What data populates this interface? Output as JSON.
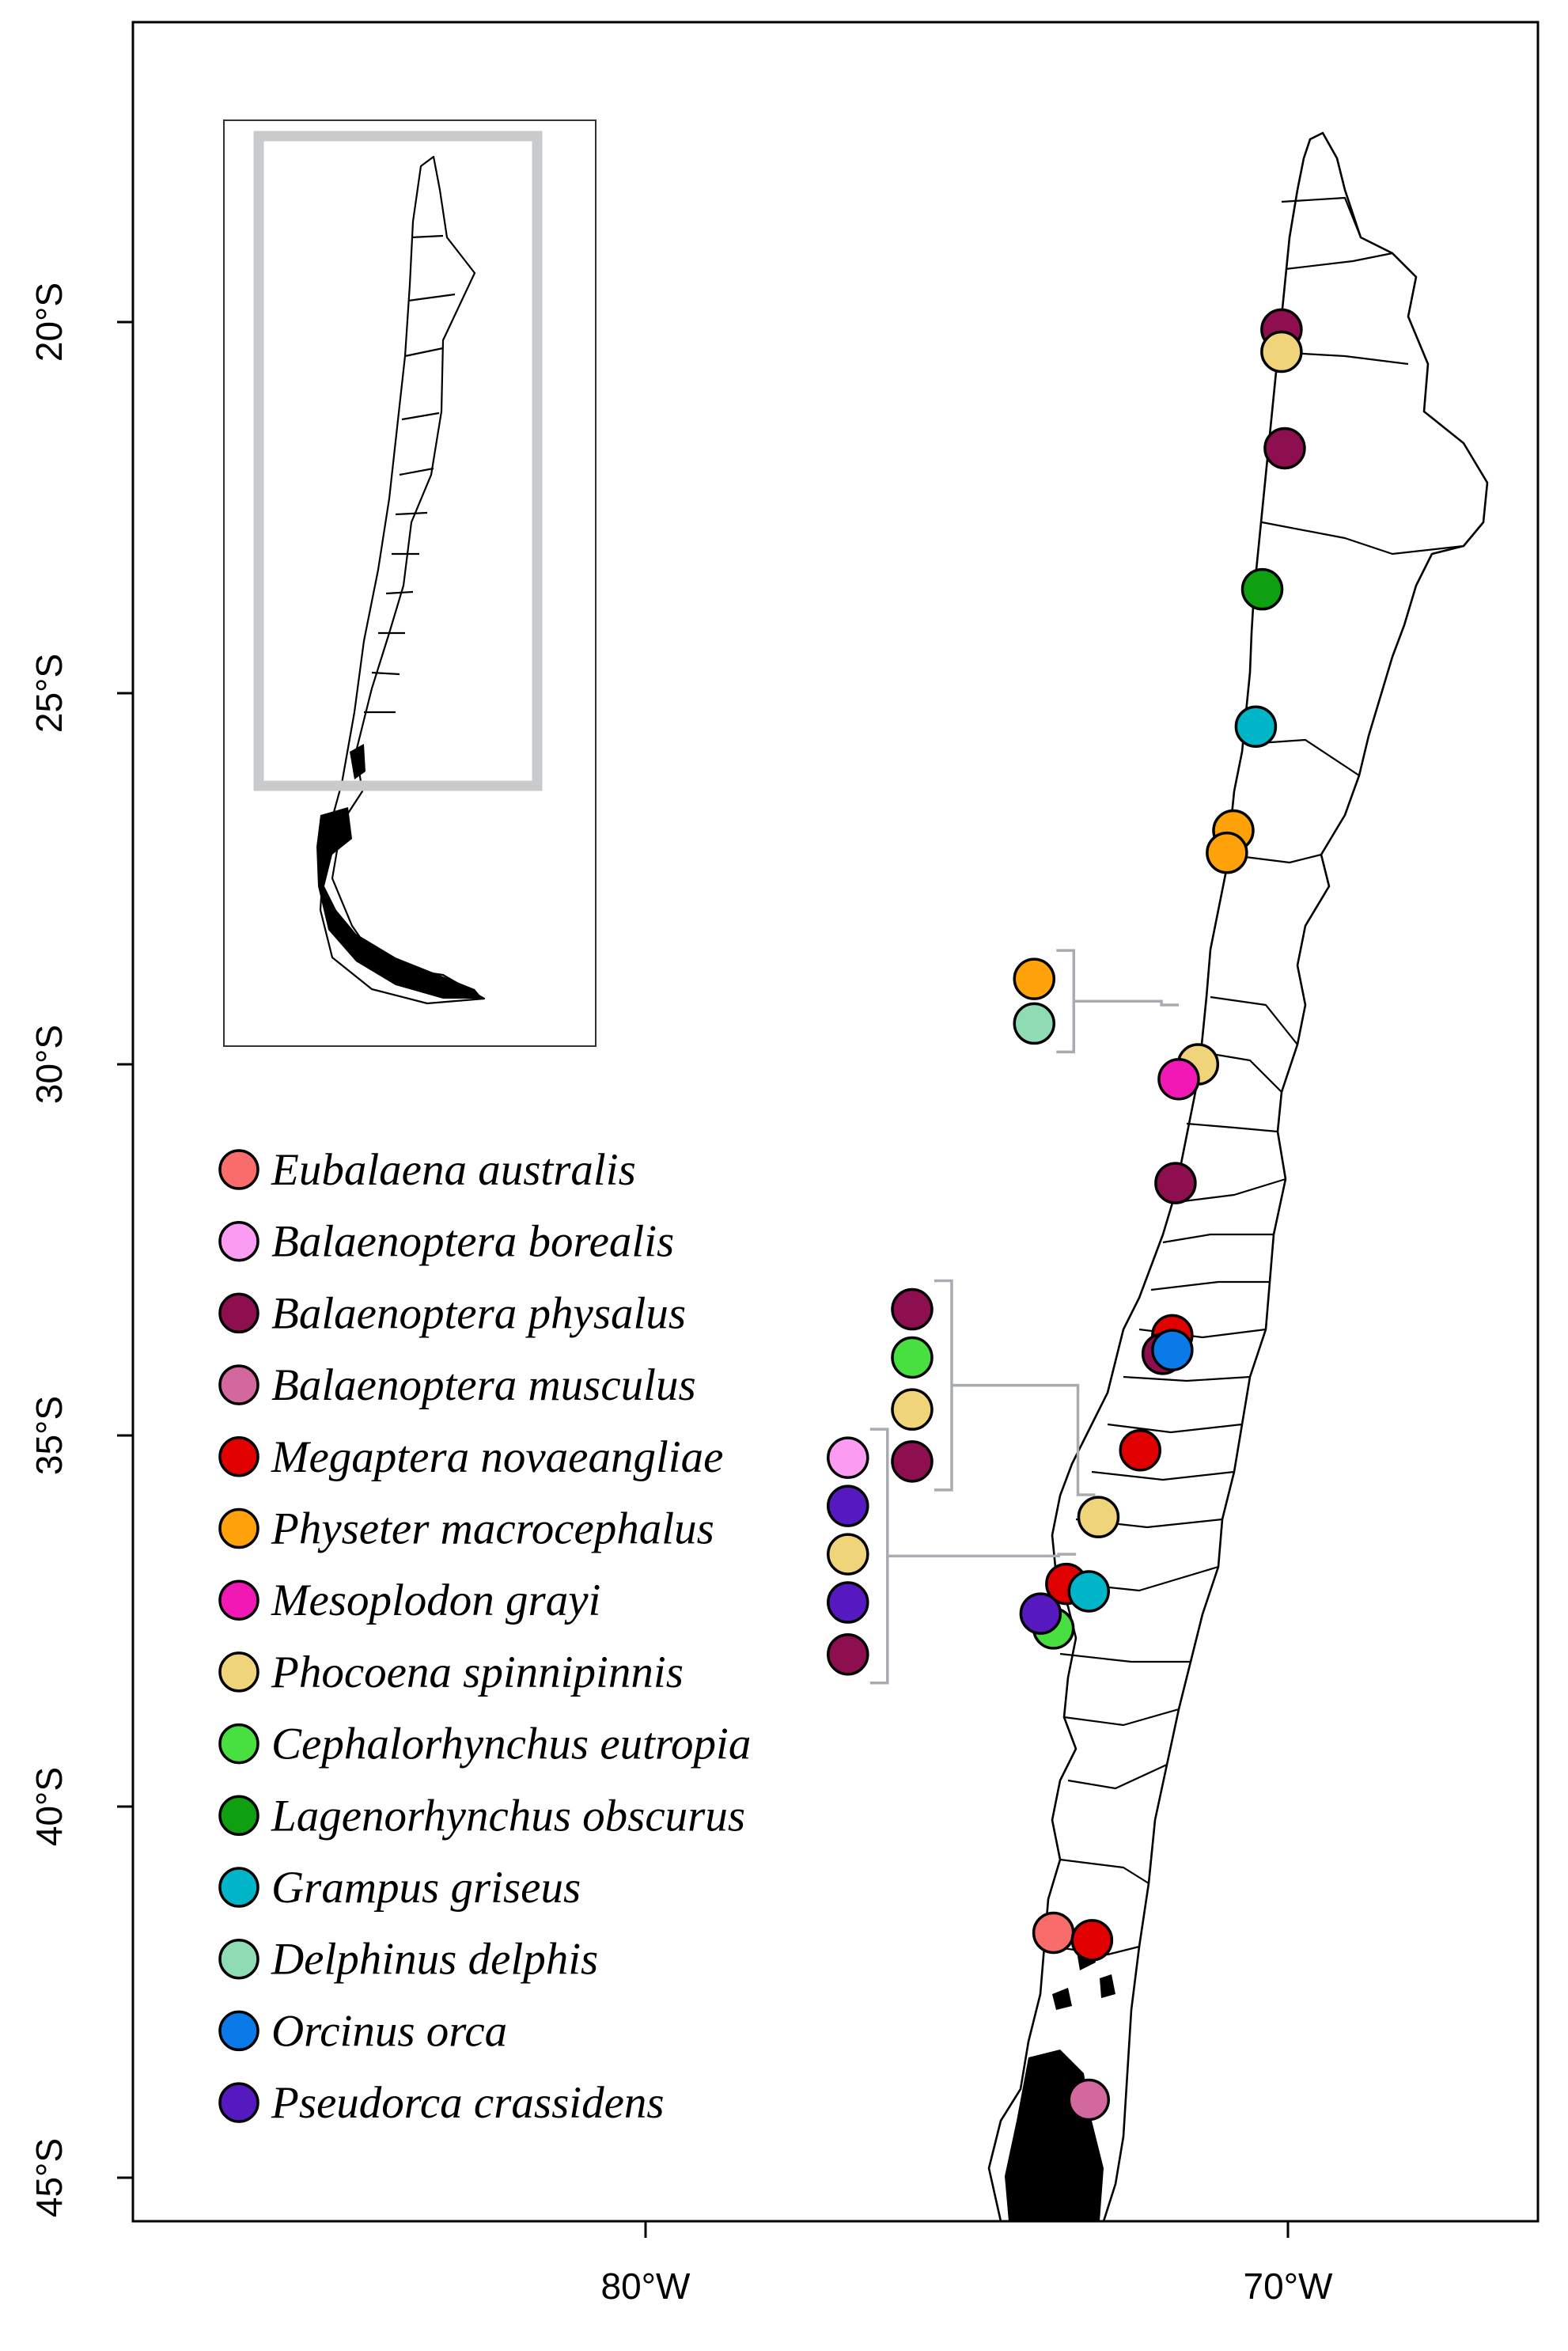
{
  "map": {
    "region": "Chile (18°S – 45°S)",
    "y_axis": {
      "ticks": [
        {
          "lat": 20,
          "label": "20°S"
        },
        {
          "lat": 25,
          "label": "25°S"
        },
        {
          "lat": 30,
          "label": "30°S"
        },
        {
          "lat": 35,
          "label": "35°S"
        },
        {
          "lat": 40,
          "label": "40°S"
        },
        {
          "lat": 45,
          "label": "45°S"
        }
      ]
    },
    "x_axis": {
      "ticks": [
        {
          "lon": 80,
          "label": "80°W"
        },
        {
          "lon": 70,
          "label": "70°W"
        }
      ]
    },
    "inset": {
      "description": "Overview of Chile with study-area rectangle"
    }
  },
  "legend": [
    {
      "id": "ea",
      "name": "Eubalaena australis",
      "color": "#f96c6c"
    },
    {
      "id": "bb",
      "name": "Balaenoptera borealis",
      "color": "#f99cf2"
    },
    {
      "id": "bp",
      "name": "Balaenoptera physalus",
      "color": "#8e0f4f"
    },
    {
      "id": "bm",
      "name": "Balaenoptera musculus",
      "color": "#d3689f"
    },
    {
      "id": "mn",
      "name": "Megaptera novaeangliae",
      "color": "#e00000"
    },
    {
      "id": "pm",
      "name": "Physeter macrocephalus",
      "color": "#ffa20a"
    },
    {
      "id": "mg",
      "name": "Mesoplodon grayi",
      "color": "#f218b5"
    },
    {
      "id": "ps",
      "name": "Phocoena spinnipinnis",
      "color": "#efd47a"
    },
    {
      "id": "ce",
      "name": "Cephalorhynchus eutropia",
      "color": "#48e040"
    },
    {
      "id": "lo",
      "name": "Lagenorhynchus obscurus",
      "color": "#0fa012"
    },
    {
      "id": "gg",
      "name": "Grampus griseus",
      "color": "#00b5c8"
    },
    {
      "id": "dd",
      "name": "Delphinus delphis",
      "color": "#8fdcb4"
    },
    {
      "id": "oo",
      "name": "Orcinus orca",
      "color": "#0a7ae8"
    },
    {
      "id": "pc",
      "name": "Pseudorca crassidens",
      "color": "#5519bf"
    }
  ],
  "occurrences": [
    {
      "species": "bp",
      "lat": 20.1,
      "lon": 70.1
    },
    {
      "species": "ps",
      "lat": 20.4,
      "lon": 70.1
    },
    {
      "species": "bp",
      "lat": 21.7,
      "lon": 70.05
    },
    {
      "species": "lo",
      "lat": 23.6,
      "lon": 70.4
    },
    {
      "species": "gg",
      "lat": 25.45,
      "lon": 70.5
    },
    {
      "species": "pm",
      "lat": 26.85,
      "lon": 70.85
    },
    {
      "species": "pm",
      "lat": 27.15,
      "lon": 70.95
    },
    {
      "species": "ps",
      "lat": 30.0,
      "lon": 71.4
    },
    {
      "species": "mg",
      "lat": 30.2,
      "lon": 71.7
    },
    {
      "species": "bp",
      "lat": 31.6,
      "lon": 71.75
    },
    {
      "species": "mn",
      "lat": 33.65,
      "lon": 71.8
    },
    {
      "species": "bp",
      "lat": 33.9,
      "lon": 71.95
    },
    {
      "species": "oo",
      "lat": 33.85,
      "lon": 71.8
    },
    {
      "species": "mn",
      "lat": 35.2,
      "lon": 72.3
    },
    {
      "species": "ps",
      "lat": 36.1,
      "lon": 72.95
    },
    {
      "species": "mn",
      "lat": 37.0,
      "lon": 73.45
    },
    {
      "species": "gg",
      "lat": 37.1,
      "lon": 73.1
    },
    {
      "species": "ce",
      "lat": 37.6,
      "lon": 73.65
    },
    {
      "species": "pc",
      "lat": 37.4,
      "lon": 73.85
    },
    {
      "species": "ea",
      "lat": 41.7,
      "lon": 73.65
    },
    {
      "species": "mn",
      "lat": 41.8,
      "lon": 73.05
    },
    {
      "species": "bm",
      "lat": 43.95,
      "lon": 73.1
    }
  ],
  "offshore_groups": [
    {
      "attach_lat": 29.2,
      "attach_lon": 71.6,
      "column_lon": 73.95,
      "species": [
        "pm",
        "dd"
      ],
      "lats": [
        28.85,
        29.45
      ]
    },
    {
      "attach_lat": 35.8,
      "attach_lon": 72.9,
      "column_lon": 75.85,
      "species": [
        "bp",
        "ce",
        "ps",
        "bp"
      ],
      "lats": [
        33.3,
        33.95,
        34.65,
        35.35
      ]
    },
    {
      "attach_lat": 36.6,
      "attach_lon": 73.2,
      "column_lon": 76.85,
      "species": [
        "bb",
        "pc",
        "ps",
        "pc",
        "bp"
      ],
      "lats": [
        35.3,
        35.95,
        36.6,
        37.25,
        37.95
      ]
    }
  ]
}
